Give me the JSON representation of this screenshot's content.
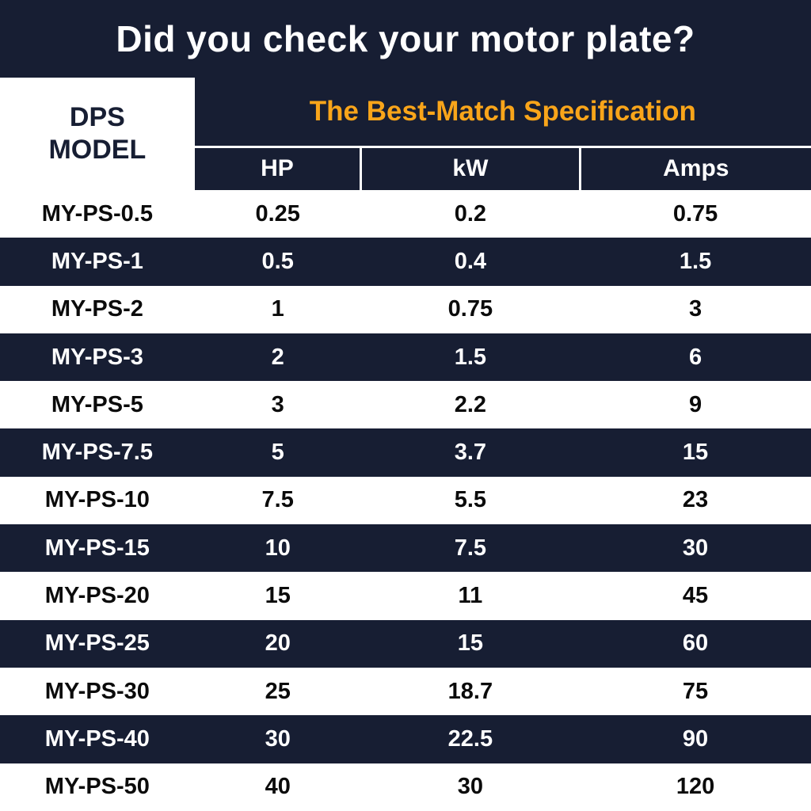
{
  "colors": {
    "navy": "#171E33",
    "orange": "#F9A51A",
    "white": "#FFFFFF",
    "black": "#0B0B0B"
  },
  "header": {
    "title": "Did you check your motor plate?"
  },
  "table": {
    "model_header": "DPS\nMODEL",
    "spec_header": "The Best-Match Specification",
    "columns": [
      "HP",
      "kW",
      "Amps"
    ],
    "rows": [
      [
        "MY-PS-0.5",
        "0.25",
        "0.2",
        "0.75"
      ],
      [
        "MY-PS-1",
        "0.5",
        "0.4",
        "1.5"
      ],
      [
        "MY-PS-2",
        "1",
        "0.75",
        "3"
      ],
      [
        "MY-PS-3",
        "2",
        "1.5",
        "6"
      ],
      [
        "MY-PS-5",
        "3",
        "2.2",
        "9"
      ],
      [
        "MY-PS-7.5",
        "5",
        "3.7",
        "15"
      ],
      [
        "MY-PS-10",
        "7.5",
        "5.5",
        "23"
      ],
      [
        "MY-PS-15",
        "10",
        "7.5",
        "30"
      ],
      [
        "MY-PS-20",
        "15",
        "11",
        "45"
      ],
      [
        "MY-PS-25",
        "20",
        "15",
        "60"
      ],
      [
        "MY-PS-30",
        "25",
        "18.7",
        "75"
      ],
      [
        "MY-PS-40",
        "30",
        "22.5",
        "90"
      ],
      [
        "MY-PS-50",
        "40",
        "30",
        "120"
      ]
    ]
  },
  "chart_data": {
    "type": "table",
    "title": "Did you check your motor plate?",
    "subtitle": "The Best-Match Specification",
    "columns": [
      "DPS MODEL",
      "HP",
      "kW",
      "Amps"
    ],
    "rows": [
      [
        "MY-PS-0.5",
        0.25,
        0.2,
        0.75
      ],
      [
        "MY-PS-1",
        0.5,
        0.4,
        1.5
      ],
      [
        "MY-PS-2",
        1,
        0.75,
        3
      ],
      [
        "MY-PS-3",
        2,
        1.5,
        6
      ],
      [
        "MY-PS-5",
        3,
        2.2,
        9
      ],
      [
        "MY-PS-7.5",
        5,
        3.7,
        15
      ],
      [
        "MY-PS-10",
        7.5,
        5.5,
        23
      ],
      [
        "MY-PS-15",
        10,
        7.5,
        30
      ],
      [
        "MY-PS-20",
        15,
        11,
        45
      ],
      [
        "MY-PS-25",
        20,
        15,
        60
      ],
      [
        "MY-PS-30",
        25,
        18.7,
        75
      ],
      [
        "MY-PS-40",
        30,
        22.5,
        90
      ],
      [
        "MY-PS-50",
        40,
        30,
        120
      ]
    ],
    "layout_hints": {
      "row_striping": [
        "white",
        "navy"
      ],
      "header_accent_color": "#F9A51A",
      "background_color": "#171E33"
    }
  }
}
